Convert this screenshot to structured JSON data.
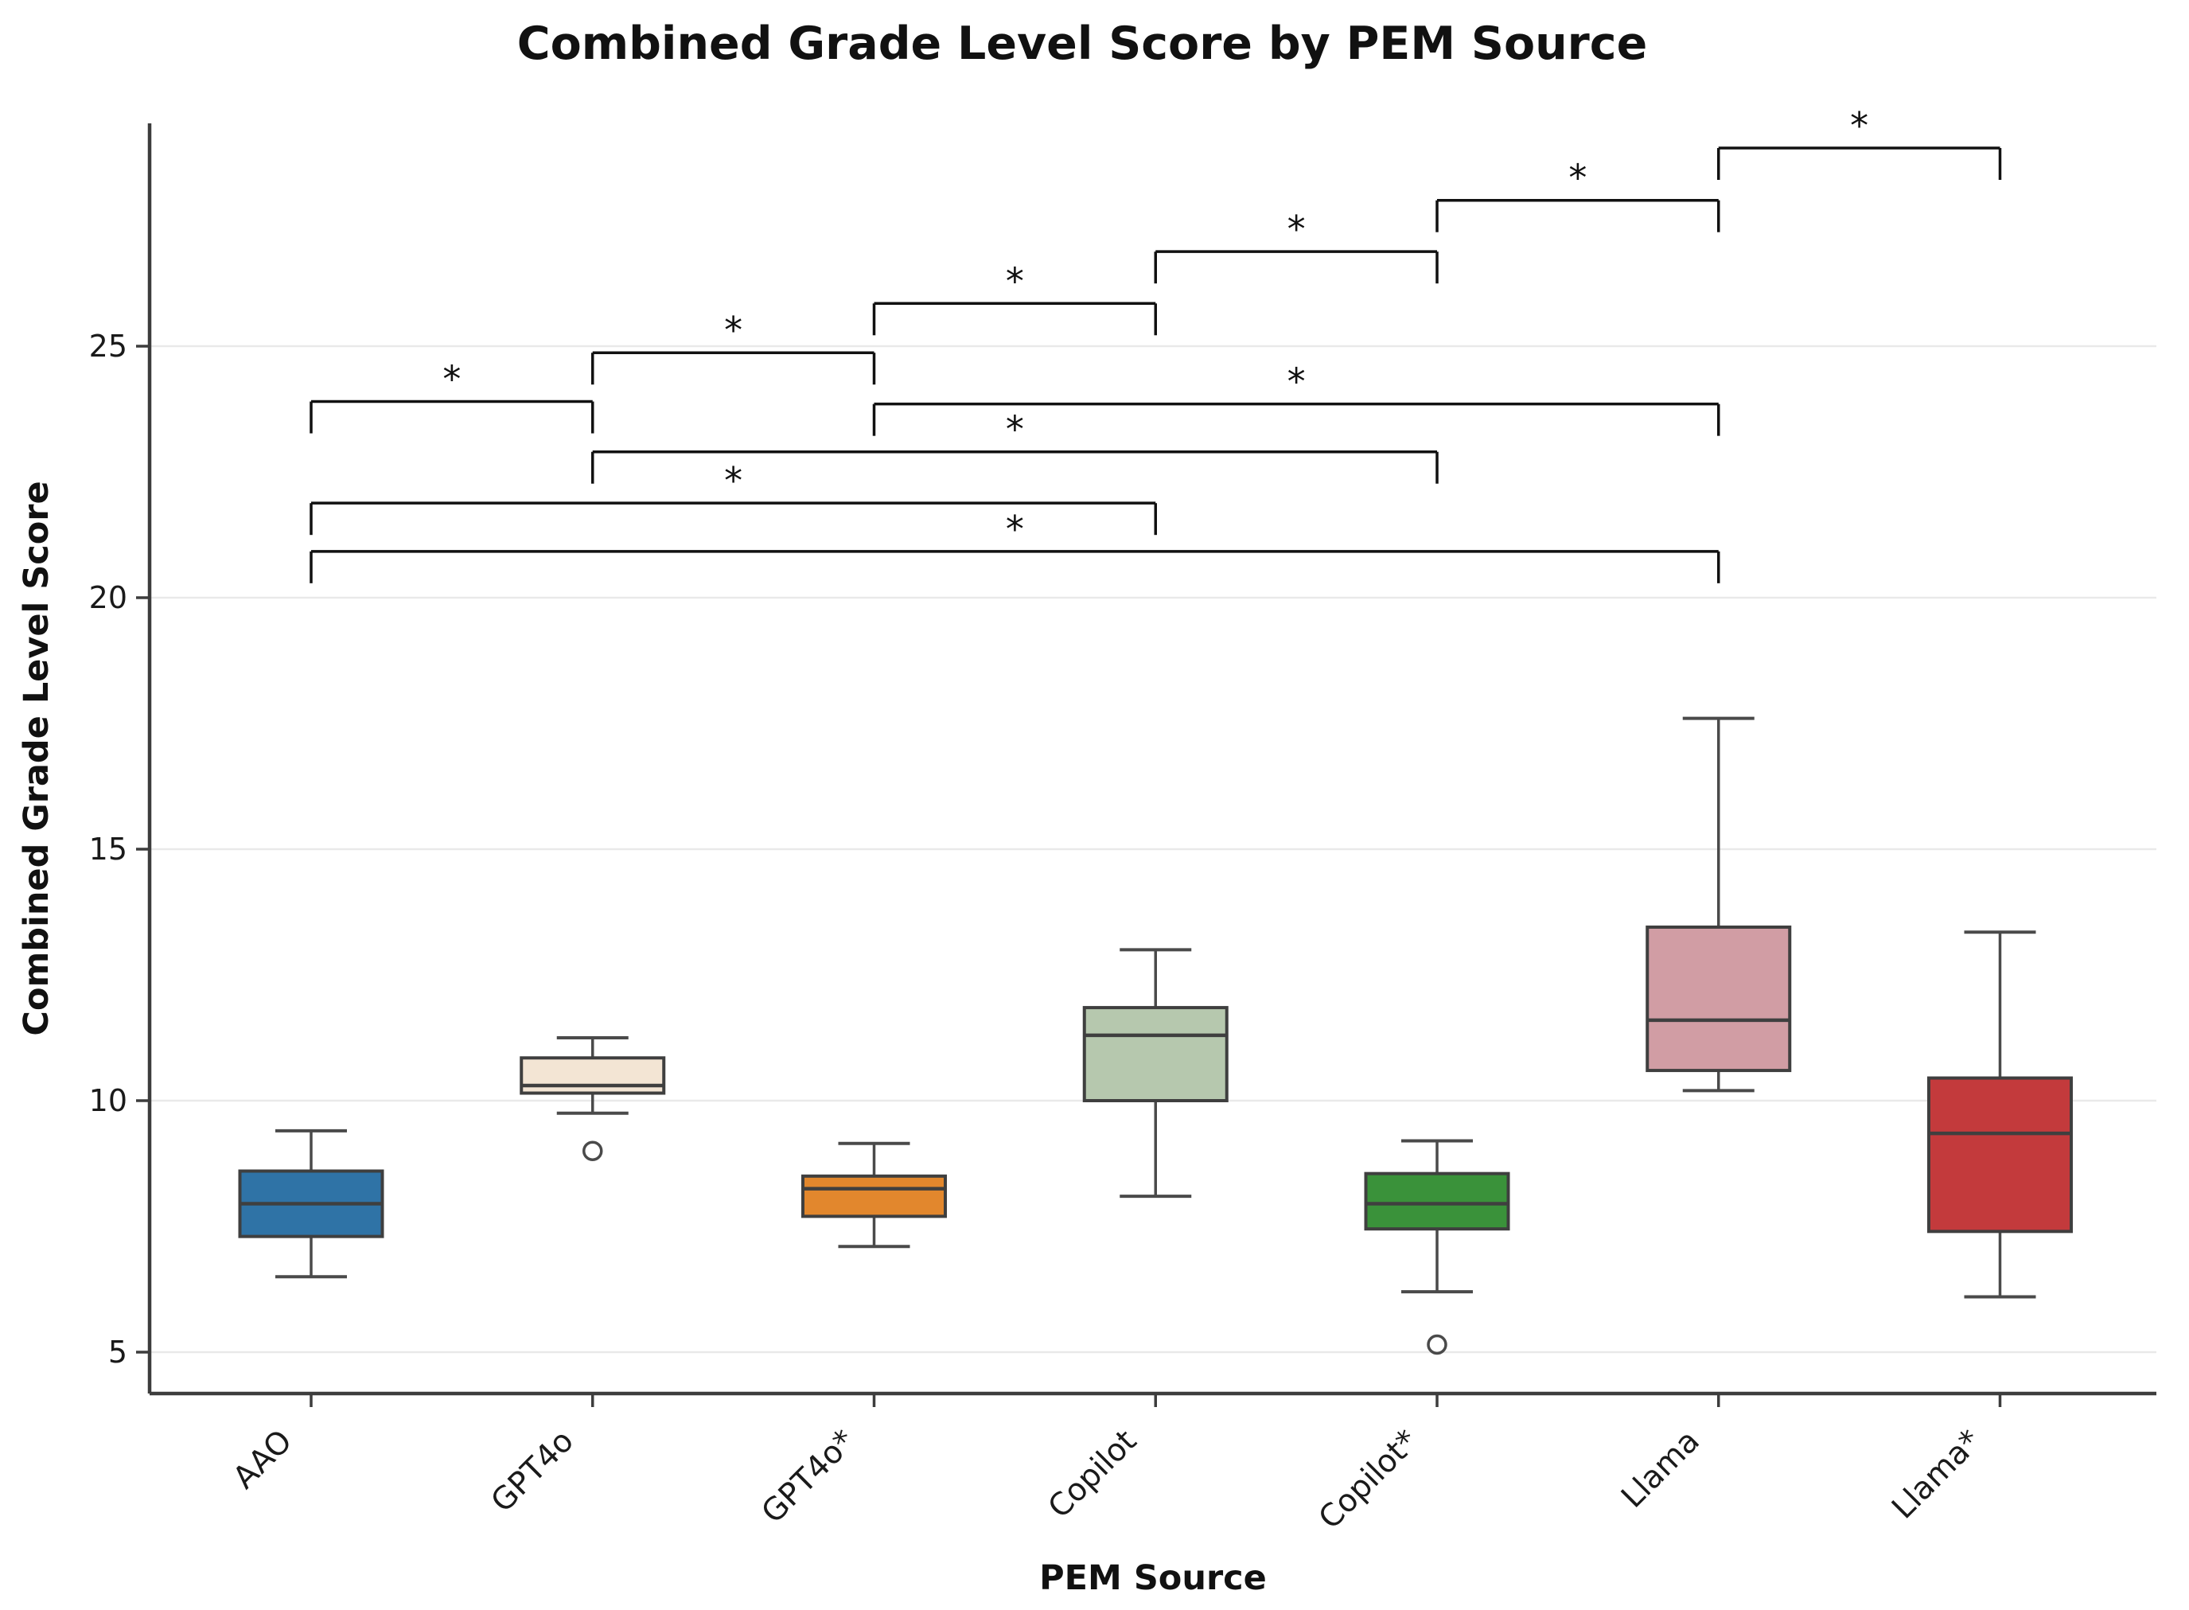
{
  "chart_data": {
    "type": "boxplot",
    "title": "Combined Grade Level Score by PEM Source",
    "xlabel": "PEM Source",
    "ylabel": "Combined Grade Level Score",
    "categories": [
      "AAO",
      "GPT4o",
      "GPT4o*",
      "Copilot",
      "Copilot*",
      "Llama",
      "Llama*"
    ],
    "yticks": [
      5,
      10,
      15,
      20,
      25
    ],
    "ylim": [
      4.2,
      29.45
    ],
    "grid": "horizontal",
    "legend": "none",
    "boxes": [
      {
        "category": "AAO",
        "color": "#2f73a6",
        "whisker_low": 6.5,
        "q1": 7.3,
        "median": 7.95,
        "q3": 8.6,
        "whisker_high": 9.4,
        "outliers": []
      },
      {
        "category": "GPT4o",
        "color": "#f3e5d4",
        "whisker_low": 9.75,
        "q1": 10.15,
        "median": 10.3,
        "q3": 10.85,
        "whisker_high": 11.25,
        "outliers": [
          9.0
        ]
      },
      {
        "category": "GPT4o*",
        "color": "#e2872d",
        "whisker_low": 7.1,
        "q1": 7.7,
        "median": 8.25,
        "q3": 8.5,
        "whisker_high": 9.15,
        "outliers": []
      },
      {
        "category": "Copilot",
        "color": "#b6c8ae",
        "whisker_low": 8.1,
        "q1": 10.0,
        "median": 11.3,
        "q3": 11.85,
        "whisker_high": 13.0,
        "outliers": []
      },
      {
        "category": "Copilot*",
        "color": "#3a923a",
        "whisker_low": 6.2,
        "q1": 7.45,
        "median": 7.95,
        "q3": 8.55,
        "whisker_high": 9.2,
        "outliers": [
          5.15
        ]
      },
      {
        "category": "Llama",
        "color": "#d19da4",
        "whisker_low": 10.2,
        "q1": 10.6,
        "median": 11.6,
        "q3": 13.45,
        "whisker_high": 17.6,
        "outliers": []
      },
      {
        "category": "Llama*",
        "color": "#c33a3c",
        "whisker_low": 6.1,
        "q1": 7.4,
        "median": 9.35,
        "q3": 10.45,
        "whisker_high": 13.35,
        "outliers": []
      }
    ],
    "significance_brackets": [
      {
        "from": "AAO",
        "to": "GPT4o",
        "y": 23.9,
        "label": "*"
      },
      {
        "from": "GPT4o",
        "to": "GPT4o*",
        "y": 24.87,
        "label": "*"
      },
      {
        "from": "GPT4o*",
        "to": "Copilot",
        "y": 25.85,
        "label": "*"
      },
      {
        "from": "Copilot",
        "to": "Copilot*",
        "y": 26.88,
        "label": "*"
      },
      {
        "from": "Copilot*",
        "to": "Llama",
        "y": 27.9,
        "label": "*"
      },
      {
        "from": "Llama",
        "to": "Llama*",
        "y": 28.94,
        "label": "*"
      },
      {
        "from": "GPT4o*",
        "to": "Llama",
        "y": 23.85,
        "label": "*"
      },
      {
        "from": "GPT4o",
        "to": "Copilot*",
        "y": 22.9,
        "label": "*"
      },
      {
        "from": "AAO",
        "to": "Copilot",
        "y": 21.88,
        "label": "*"
      },
      {
        "from": "AAO",
        "to": "Llama",
        "y": 20.92,
        "label": "*"
      }
    ],
    "style": {
      "box_edge_color": "#3f3f3f",
      "whisker_color": "#4a4a4a",
      "bracket_color": "#111111",
      "grid_color": "#e9e9e9",
      "spine_color": "#3d3d3d",
      "tick_label_color": "#1a1a1a"
    }
  }
}
